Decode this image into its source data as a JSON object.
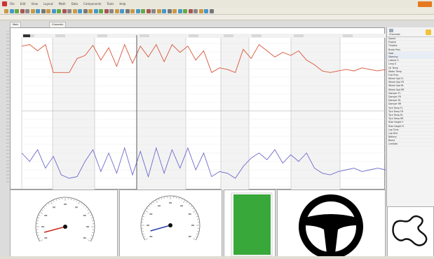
{
  "menu": {
    "items": [
      "File",
      "Edit",
      "View",
      "Layout",
      "Math",
      "Data",
      "Components",
      "Tools",
      "Help"
    ]
  },
  "tabs": [
    "Main",
    "Channels"
  ],
  "chart_data": {
    "type": "line",
    "series": [
      {
        "color": "#d9553a",
        "values": [
          78,
          80,
          72,
          80,
          44,
          44,
          44,
          62,
          66,
          79,
          60,
          76,
          52,
          80,
          56,
          78,
          64,
          80,
          58,
          80,
          70,
          78,
          60,
          72,
          44,
          50,
          48,
          44,
          74,
          62,
          80,
          72,
          64,
          70,
          66,
          72,
          60,
          54,
          46,
          44,
          46,
          48,
          46,
          50,
          48,
          46,
          48
        ]
      },
      {
        "color": "#6f6acb",
        "values": [
          40,
          30,
          44,
          22,
          36,
          14,
          10,
          12,
          30,
          44,
          18,
          40,
          16,
          46,
          14,
          42,
          12,
          46,
          16,
          44,
          22,
          46,
          20,
          40,
          12,
          18,
          16,
          10,
          24,
          34,
          40,
          32,
          44,
          28,
          38,
          30,
          40,
          22,
          16,
          14,
          18,
          20,
          22,
          18,
          20,
          22,
          20
        ]
      }
    ]
  },
  "right_panel": {
    "title": "Channels",
    "rows": [
      {
        "name": "Speed",
        "value": ""
      },
      {
        "name": "Engine",
        "value": ""
      },
      {
        "name": "Throttle",
        "value": ""
      },
      {
        "name": "Brake Pres",
        "value": ""
      },
      {
        "name": "Gear",
        "value": ""
      },
      {
        "name": "Steering",
        "value": ""
      },
      {
        "name": "Lateral G",
        "value": ""
      },
      {
        "name": "Long G",
        "value": ""
      },
      {
        "name": "Oil Temp",
        "value": ""
      },
      {
        "name": "Water Temp",
        "value": ""
      },
      {
        "name": "Fuel Pres",
        "value": ""
      },
      {
        "name": "Wheel Spd FL",
        "value": ""
      },
      {
        "name": "Wheel Spd FR",
        "value": ""
      },
      {
        "name": "Wheel Spd RL",
        "value": ""
      },
      {
        "name": "Wheel Spd RR",
        "value": ""
      },
      {
        "name": "Damper FL",
        "value": ""
      },
      {
        "name": "Damper FR",
        "value": ""
      },
      {
        "name": "Damper RL",
        "value": ""
      },
      {
        "name": "Damper RR",
        "value": ""
      },
      {
        "name": "Tyre Temp FL",
        "value": ""
      },
      {
        "name": "Tyre Temp FR",
        "value": ""
      },
      {
        "name": "Tyre Temp RL",
        "value": ""
      },
      {
        "name": "Tyre Temp RR",
        "value": ""
      },
      {
        "name": "Ride Height F",
        "value": ""
      },
      {
        "name": "Ride Height R",
        "value": ""
      },
      {
        "name": "Lap Time",
        "value": ""
      },
      {
        "name": "Lap Dist",
        "value": ""
      },
      {
        "name": "Battery",
        "value": ""
      },
      {
        "name": "Boost",
        "value": ""
      },
      {
        "name": "Lambda",
        "value": ""
      }
    ]
  },
  "gauges": [
    {
      "name": "speed",
      "needle_color": "#cc2a1e",
      "level": 0.42
    },
    {
      "name": "rpm",
      "needle_color": "#2e3fb0",
      "level": 0.36
    }
  ],
  "throttle_bar": {
    "color": "#38a83a",
    "level": 1.0
  },
  "colors": {
    "accent": "#e6781e",
    "grid": "#cccccc"
  },
  "icons": [
    "app-icon",
    "steering-wheel-icon",
    "track-map-icon"
  ]
}
